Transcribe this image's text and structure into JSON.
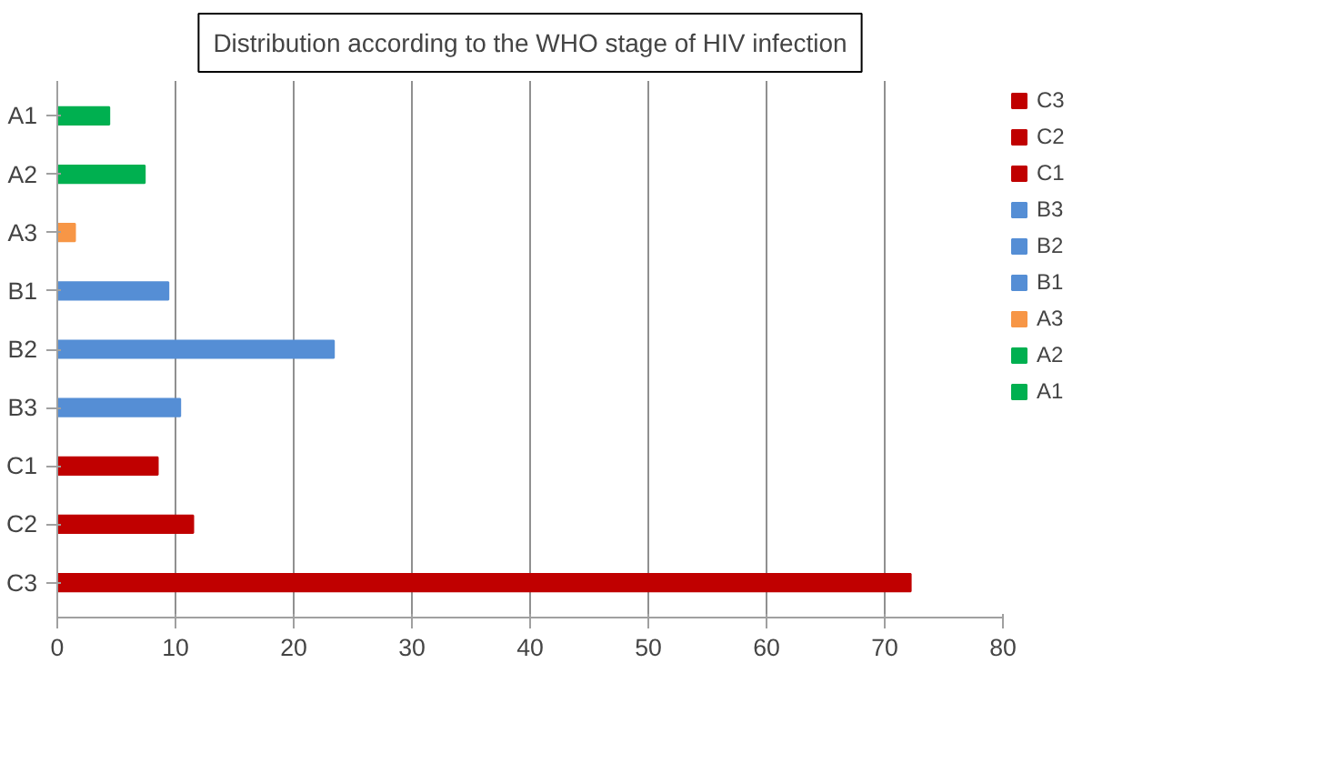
{
  "chart_data": {
    "type": "bar",
    "orientation": "horizontal",
    "title": "Distribution according to the WHO stage of HIV infection",
    "categories": [
      "A1",
      "A2",
      "A3",
      "B1",
      "B2",
      "B3",
      "C1",
      "C2",
      "C3"
    ],
    "series": [
      {
        "name": "C3",
        "color": "#c00000",
        "values": [
          null,
          null,
          null,
          null,
          null,
          null,
          null,
          null,
          72.2
        ]
      },
      {
        "name": "C2",
        "color": "#c00000",
        "values": [
          null,
          null,
          null,
          null,
          null,
          null,
          null,
          11.5,
          null
        ]
      },
      {
        "name": "C1",
        "color": "#c00000",
        "values": [
          null,
          null,
          null,
          null,
          null,
          null,
          8.5,
          null,
          null
        ]
      },
      {
        "name": "B3",
        "color": "#558ed5",
        "values": [
          null,
          null,
          null,
          null,
          null,
          10.4,
          null,
          null,
          null
        ]
      },
      {
        "name": "B2",
        "color": "#558ed5",
        "values": [
          null,
          null,
          null,
          null,
          23.4,
          null,
          null,
          null,
          null
        ]
      },
      {
        "name": "B1",
        "color": "#558ed5",
        "values": [
          null,
          null,
          null,
          9.4,
          null,
          null,
          null,
          null,
          null
        ]
      },
      {
        "name": "A3",
        "color": "#f79646",
        "values": [
          null,
          null,
          1.5,
          null,
          null,
          null,
          null,
          null,
          null
        ]
      },
      {
        "name": "A2",
        "color": "#00b050",
        "values": [
          null,
          7.4,
          null,
          null,
          null,
          null,
          null,
          null,
          null
        ]
      },
      {
        "name": "A1",
        "color": "#00b050",
        "values": [
          4.4,
          null,
          null,
          null,
          null,
          null,
          null,
          null,
          null
        ]
      }
    ],
    "xlim": [
      0,
      80
    ],
    "xticks": [
      0,
      10,
      20,
      30,
      40,
      50,
      60,
      70,
      80
    ],
    "grid": "x",
    "legend": "right"
  }
}
